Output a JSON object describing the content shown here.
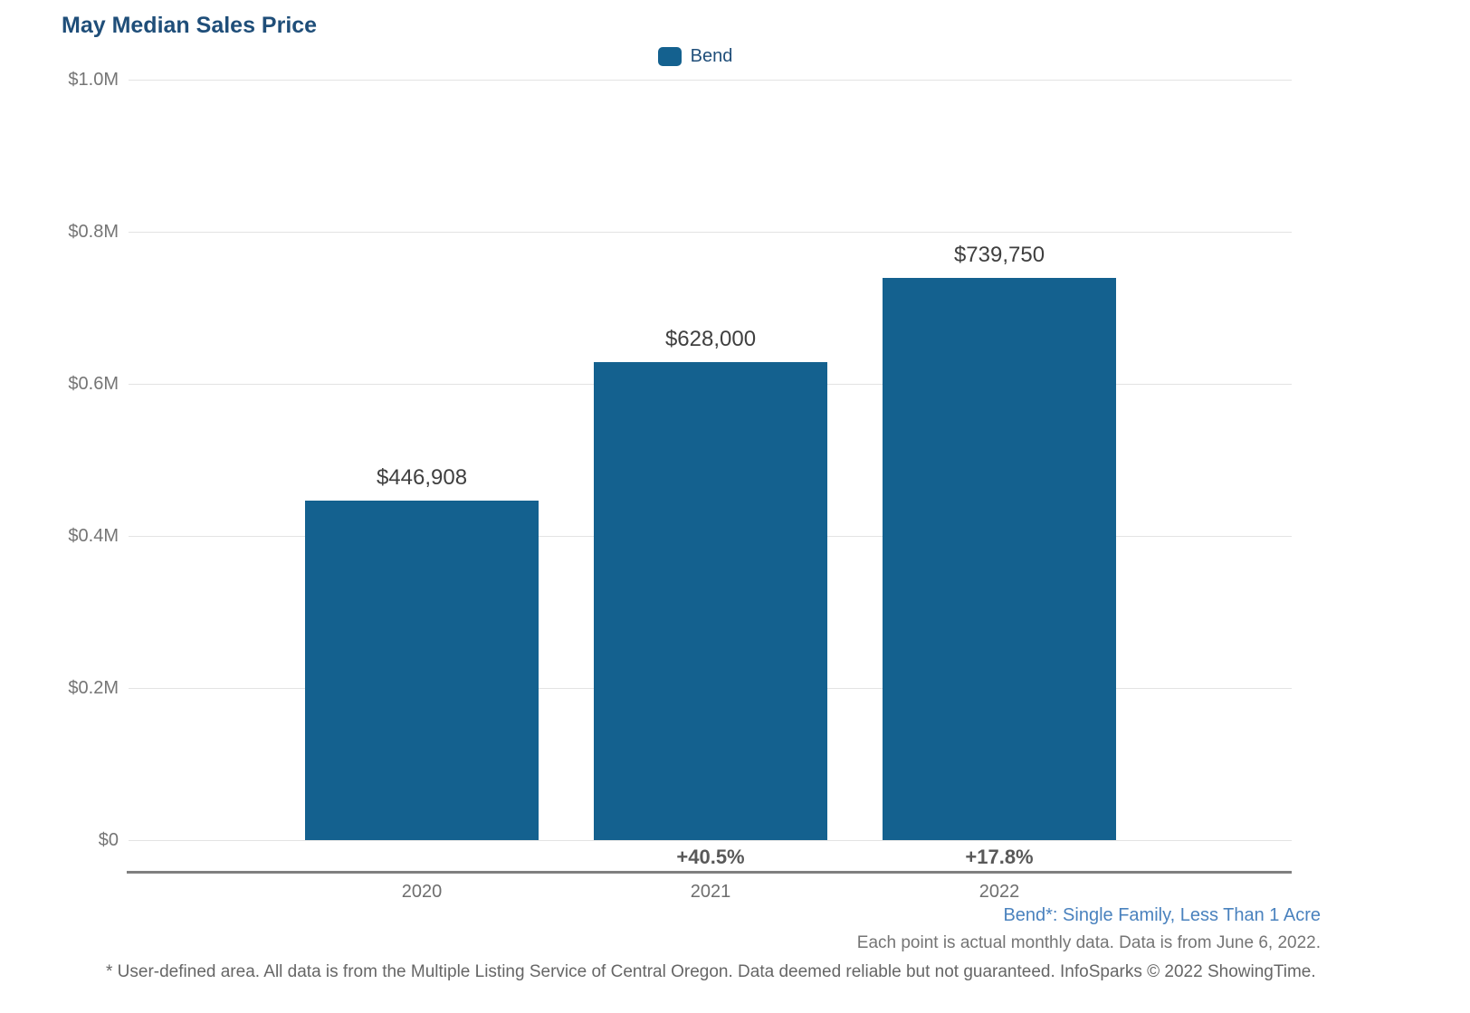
{
  "chart_data": {
    "type": "bar",
    "title": "May Median Sales Price",
    "categories": [
      "2020",
      "2021",
      "2022"
    ],
    "series": [
      {
        "name": "Bend",
        "values": [
          446908,
          628000,
          739750
        ]
      }
    ],
    "bar_labels": [
      "$446,908",
      "$628,000",
      "$739,750"
    ],
    "pct_change_labels": [
      "",
      "+40.5%",
      "+17.8%"
    ],
    "y_ticks": [
      "$1.0M",
      "$0.8M",
      "$0.6M",
      "$0.4M",
      "$0.2M",
      "$0"
    ],
    "ylim": [
      0,
      1000000
    ],
    "xlabel": "",
    "ylabel": "",
    "grid": "horizontal",
    "legend_position": "top-center"
  },
  "footnotes": {
    "series_definition": "Bend*: Single Family, Less Than 1 Acre",
    "data_note": "Each point is actual monthly data. Data is from June 6, 2022.",
    "disclaimer": "* User-defined area. All data is from the Multiple Listing Service of Central Oregon. Data deemed reliable but not guaranteed. InfoSparks © 2022 ShowingTime."
  },
  "colors": {
    "bar": "#14618F",
    "title": "#1F4E79",
    "legendtext": "#1F4E79",
    "axislabel": "#757575",
    "barlabel": "#3F3F3F",
    "pctlabel": "#595959",
    "noteblue": "#4A82BE",
    "notegray": "#757575",
    "disclaimer": "#666666",
    "gridline": "#E3E3E3",
    "axisline": "#808080",
    "yearlabel": "#6E6E6E"
  }
}
